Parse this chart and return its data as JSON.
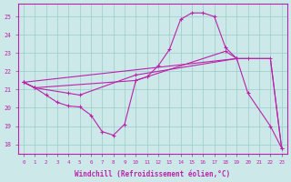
{
  "xlabel": "Windchill (Refroidissement éolien,°C)",
  "bg_color": "#cce8e8",
  "grid_color": "#99cccc",
  "line_color": "#bb22aa",
  "xlim": [
    -0.5,
    23.5
  ],
  "ylim": [
    17.5,
    25.7
  ],
  "yticks": [
    18,
    19,
    20,
    21,
    22,
    23,
    24,
    25
  ],
  "xticks": [
    0,
    1,
    2,
    3,
    4,
    5,
    6,
    7,
    8,
    9,
    10,
    11,
    12,
    13,
    14,
    15,
    16,
    17,
    18,
    19,
    20,
    21,
    22,
    23
  ],
  "s1_x": [
    0,
    1,
    2,
    3,
    4,
    5,
    6,
    7,
    8,
    9,
    10,
    11,
    12,
    13,
    14,
    15,
    16,
    17,
    18,
    19
  ],
  "s1_y": [
    21.4,
    21.1,
    20.7,
    20.3,
    20.1,
    20.05,
    19.6,
    18.7,
    18.5,
    19.1,
    21.5,
    21.7,
    22.3,
    23.2,
    24.85,
    25.2,
    25.2,
    25.0,
    23.3,
    22.7
  ],
  "s2_x": [
    0,
    1,
    4,
    5,
    10,
    19,
    20,
    22,
    23
  ],
  "s2_y": [
    21.4,
    21.1,
    20.8,
    20.7,
    21.8,
    22.7,
    20.8,
    19.0,
    17.8
  ],
  "s3_x": [
    0,
    1,
    10,
    18,
    19,
    20,
    22,
    23
  ],
  "s3_y": [
    21.4,
    21.1,
    21.5,
    23.1,
    22.7,
    22.7,
    22.7,
    17.8
  ],
  "s4_x": [
    0,
    19,
    20,
    22,
    23
  ],
  "s4_y": [
    21.4,
    22.7,
    22.7,
    22.7,
    17.8
  ]
}
